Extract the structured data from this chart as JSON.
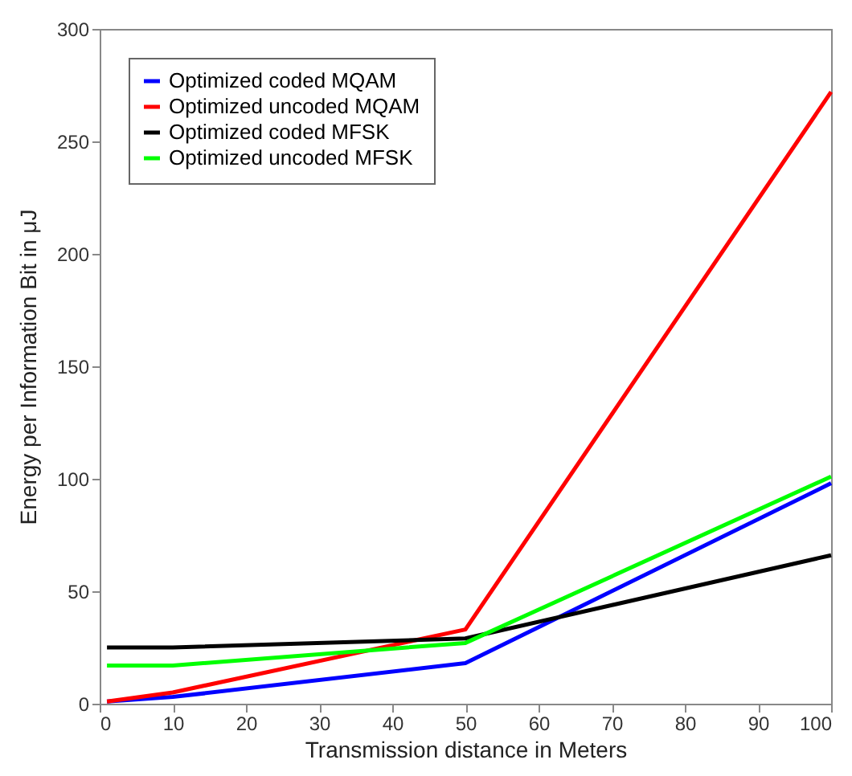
{
  "chart_data": {
    "type": "line",
    "xlabel": "Transmission distance in Meters",
    "ylabel": "Energy per Information Bit in μJ",
    "x": [
      1,
      10,
      50,
      100
    ],
    "series": [
      {
        "name": "Optimized coded MQAM",
        "color": "#0000ff",
        "values": [
          1,
          3,
          18,
          98
        ]
      },
      {
        "name": "Optimized uncoded MQAM",
        "color": "#ff0000",
        "values": [
          1,
          5,
          33,
          272
        ]
      },
      {
        "name": "Optimized coded MFSK",
        "color": "#000000",
        "values": [
          25,
          25,
          29,
          66
        ]
      },
      {
        "name": "Optimized uncoded MFSK",
        "color": "#00ff00",
        "values": [
          17,
          17,
          27,
          101
        ]
      }
    ],
    "xlim": [
      0,
      100
    ],
    "xticks": [
      0,
      10,
      20,
      30,
      40,
      50,
      60,
      70,
      80,
      90,
      100
    ],
    "ylim": [
      0,
      300
    ],
    "yticks": [
      0,
      50,
      100,
      150,
      200,
      250,
      300
    ],
    "grid": false,
    "legend": "top left",
    "line_style": "solid",
    "marker": "none"
  }
}
